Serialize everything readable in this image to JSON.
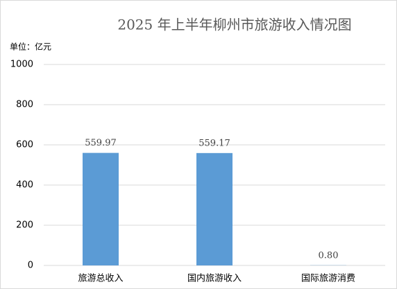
{
  "chart_data": {
    "type": "bar",
    "title": "2025 年上半年柳州市旅游收入情况图",
    "unit_label": "单位：亿元",
    "categories": [
      "旅游总收入",
      "国内旅游收入",
      "国际旅游消费"
    ],
    "values": [
      559.97,
      559.17,
      0.8
    ],
    "value_labels": [
      "559.97",
      "559.17",
      "0.80"
    ],
    "color": "#5b9bd5",
    "ylim": [
      0,
      1000
    ],
    "yticks": [
      0,
      200,
      400,
      600,
      800,
      1000
    ],
    "grid": true
  }
}
